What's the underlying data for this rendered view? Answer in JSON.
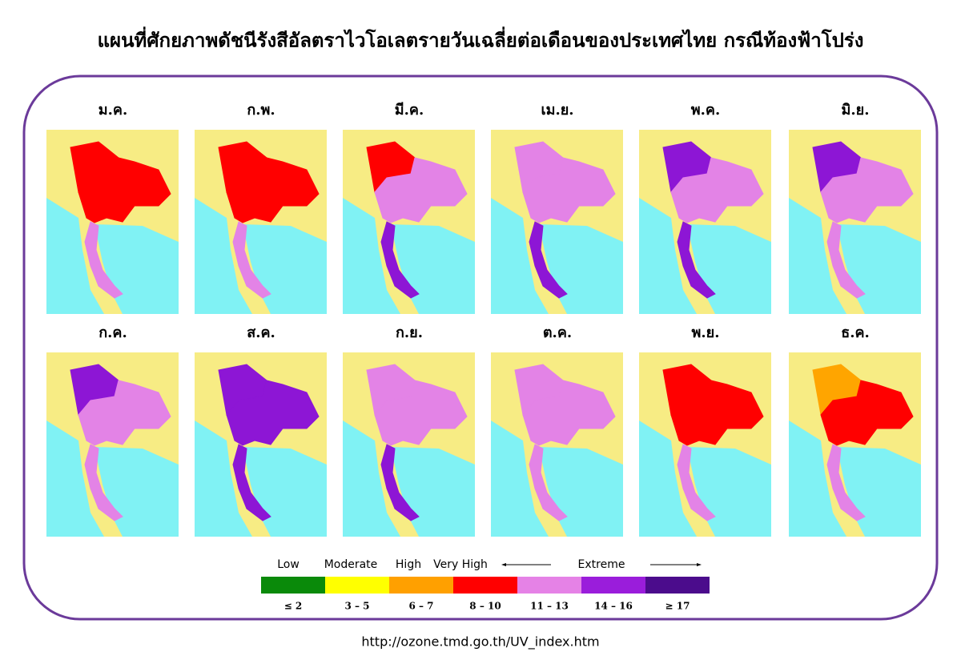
{
  "title": "แผนที่ศักยภาพดัชนีรังสีอัลตราไวโอเลตรายวันเฉลี่ยต่อเดือนของประเทศไทย กรณีท้องฟ้าโปร่ง",
  "maps": [
    {
      "label": "ม.ค.",
      "north": "#ff0000",
      "main": "#ff0000",
      "south": "#e383e6"
    },
    {
      "label": "ก.พ.",
      "north": "#ff0000",
      "main": "#ff0000",
      "south": "#e383e6"
    },
    {
      "label": "มี.ค.",
      "north": "#ff0000",
      "main": "#e383e6",
      "south": "#8d16d5"
    },
    {
      "label": "เม.ย.",
      "north": "#e383e6",
      "main": "#e383e6",
      "south": "#8d16d5"
    },
    {
      "label": "พ.ค.",
      "north": "#8d16d5",
      "main": "#e383e6",
      "south": "#8d16d5"
    },
    {
      "label": "มิ.ย.",
      "north": "#8d16d5",
      "main": "#e383e6",
      "south": "#e383e6"
    },
    {
      "label": "ก.ค.",
      "north": "#8d16d5",
      "main": "#e383e6",
      "south": "#e383e6"
    },
    {
      "label": "ส.ค.",
      "north": "#8d16d5",
      "main": "#8d16d5",
      "south": "#8d16d5"
    },
    {
      "label": "ก.ย.",
      "north": "#e383e6",
      "main": "#e383e6",
      "south": "#8d16d5"
    },
    {
      "label": "ต.ค.",
      "north": "#e383e6",
      "main": "#e383e6",
      "south": "#e383e6"
    },
    {
      "label": "พ.ย.",
      "north": "#ff0000",
      "main": "#ff0000",
      "south": "#e383e6"
    },
    {
      "label": "ธ.ค.",
      "north": "#ffa500",
      "main": "#ff0000",
      "south": "#e383e6"
    }
  ],
  "legend": {
    "labels": [
      "Low",
      "Moderate",
      "High",
      "Very High",
      "Extreme"
    ],
    "colors": [
      "#0a8a0a",
      "#ffff00",
      "#ffa000",
      "#ff0000",
      "#e582e6",
      "#9a1ddb",
      "#4b0c8c"
    ],
    "ranges": [
      "≤ 2",
      "3 – 5",
      "6 – 7",
      "8 – 10",
      "11 – 13",
      "14 – 16",
      "≥ 17"
    ]
  },
  "url": "http://ozone.tmd.go.th/UV_index.htm"
}
